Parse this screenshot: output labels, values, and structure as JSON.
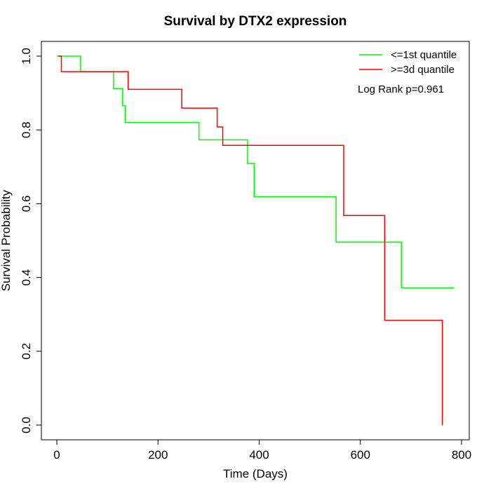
{
  "chart_data": {
    "type": "line",
    "step": true,
    "title": "Survival by DTX2 expression",
    "xlabel": "Time (Days)",
    "ylabel": "Survival Probability",
    "xlim": [
      0,
      800
    ],
    "ylim": [
      0,
      1
    ],
    "xticks": [
      "0",
      "200",
      "400",
      "600",
      "800"
    ],
    "yticks": [
      "0.0",
      "0.2",
      "0.4",
      "0.6",
      "0.8",
      "1.0"
    ],
    "xtick_values": [
      0,
      200,
      400,
      600,
      800
    ],
    "ytick_values": [
      0,
      0.2,
      0.4,
      0.6,
      0.8,
      1.0
    ],
    "legend_position": "top-right",
    "annotation": "Log Rank p=0.961",
    "series": [
      {
        "name": "<=1st quantile",
        "color": "#00ff00",
        "x": [
          0,
          47,
          112,
          130,
          135,
          281,
          377,
          390,
          552,
          681,
          785
        ],
        "y": [
          1.0,
          0.958,
          0.912,
          0.866,
          0.82,
          0.773,
          0.709,
          0.619,
          0.496,
          0.372,
          0.372
        ]
      },
      {
        "name": ">=3d quantile",
        "color": "#ff0000",
        "x": [
          3,
          9,
          141,
          247,
          317,
          328,
          567,
          648,
          762,
          762
        ],
        "y": [
          1.0,
          0.958,
          0.91,
          0.859,
          0.808,
          0.758,
          0.568,
          0.284,
          0.284,
          0.0
        ]
      }
    ]
  }
}
